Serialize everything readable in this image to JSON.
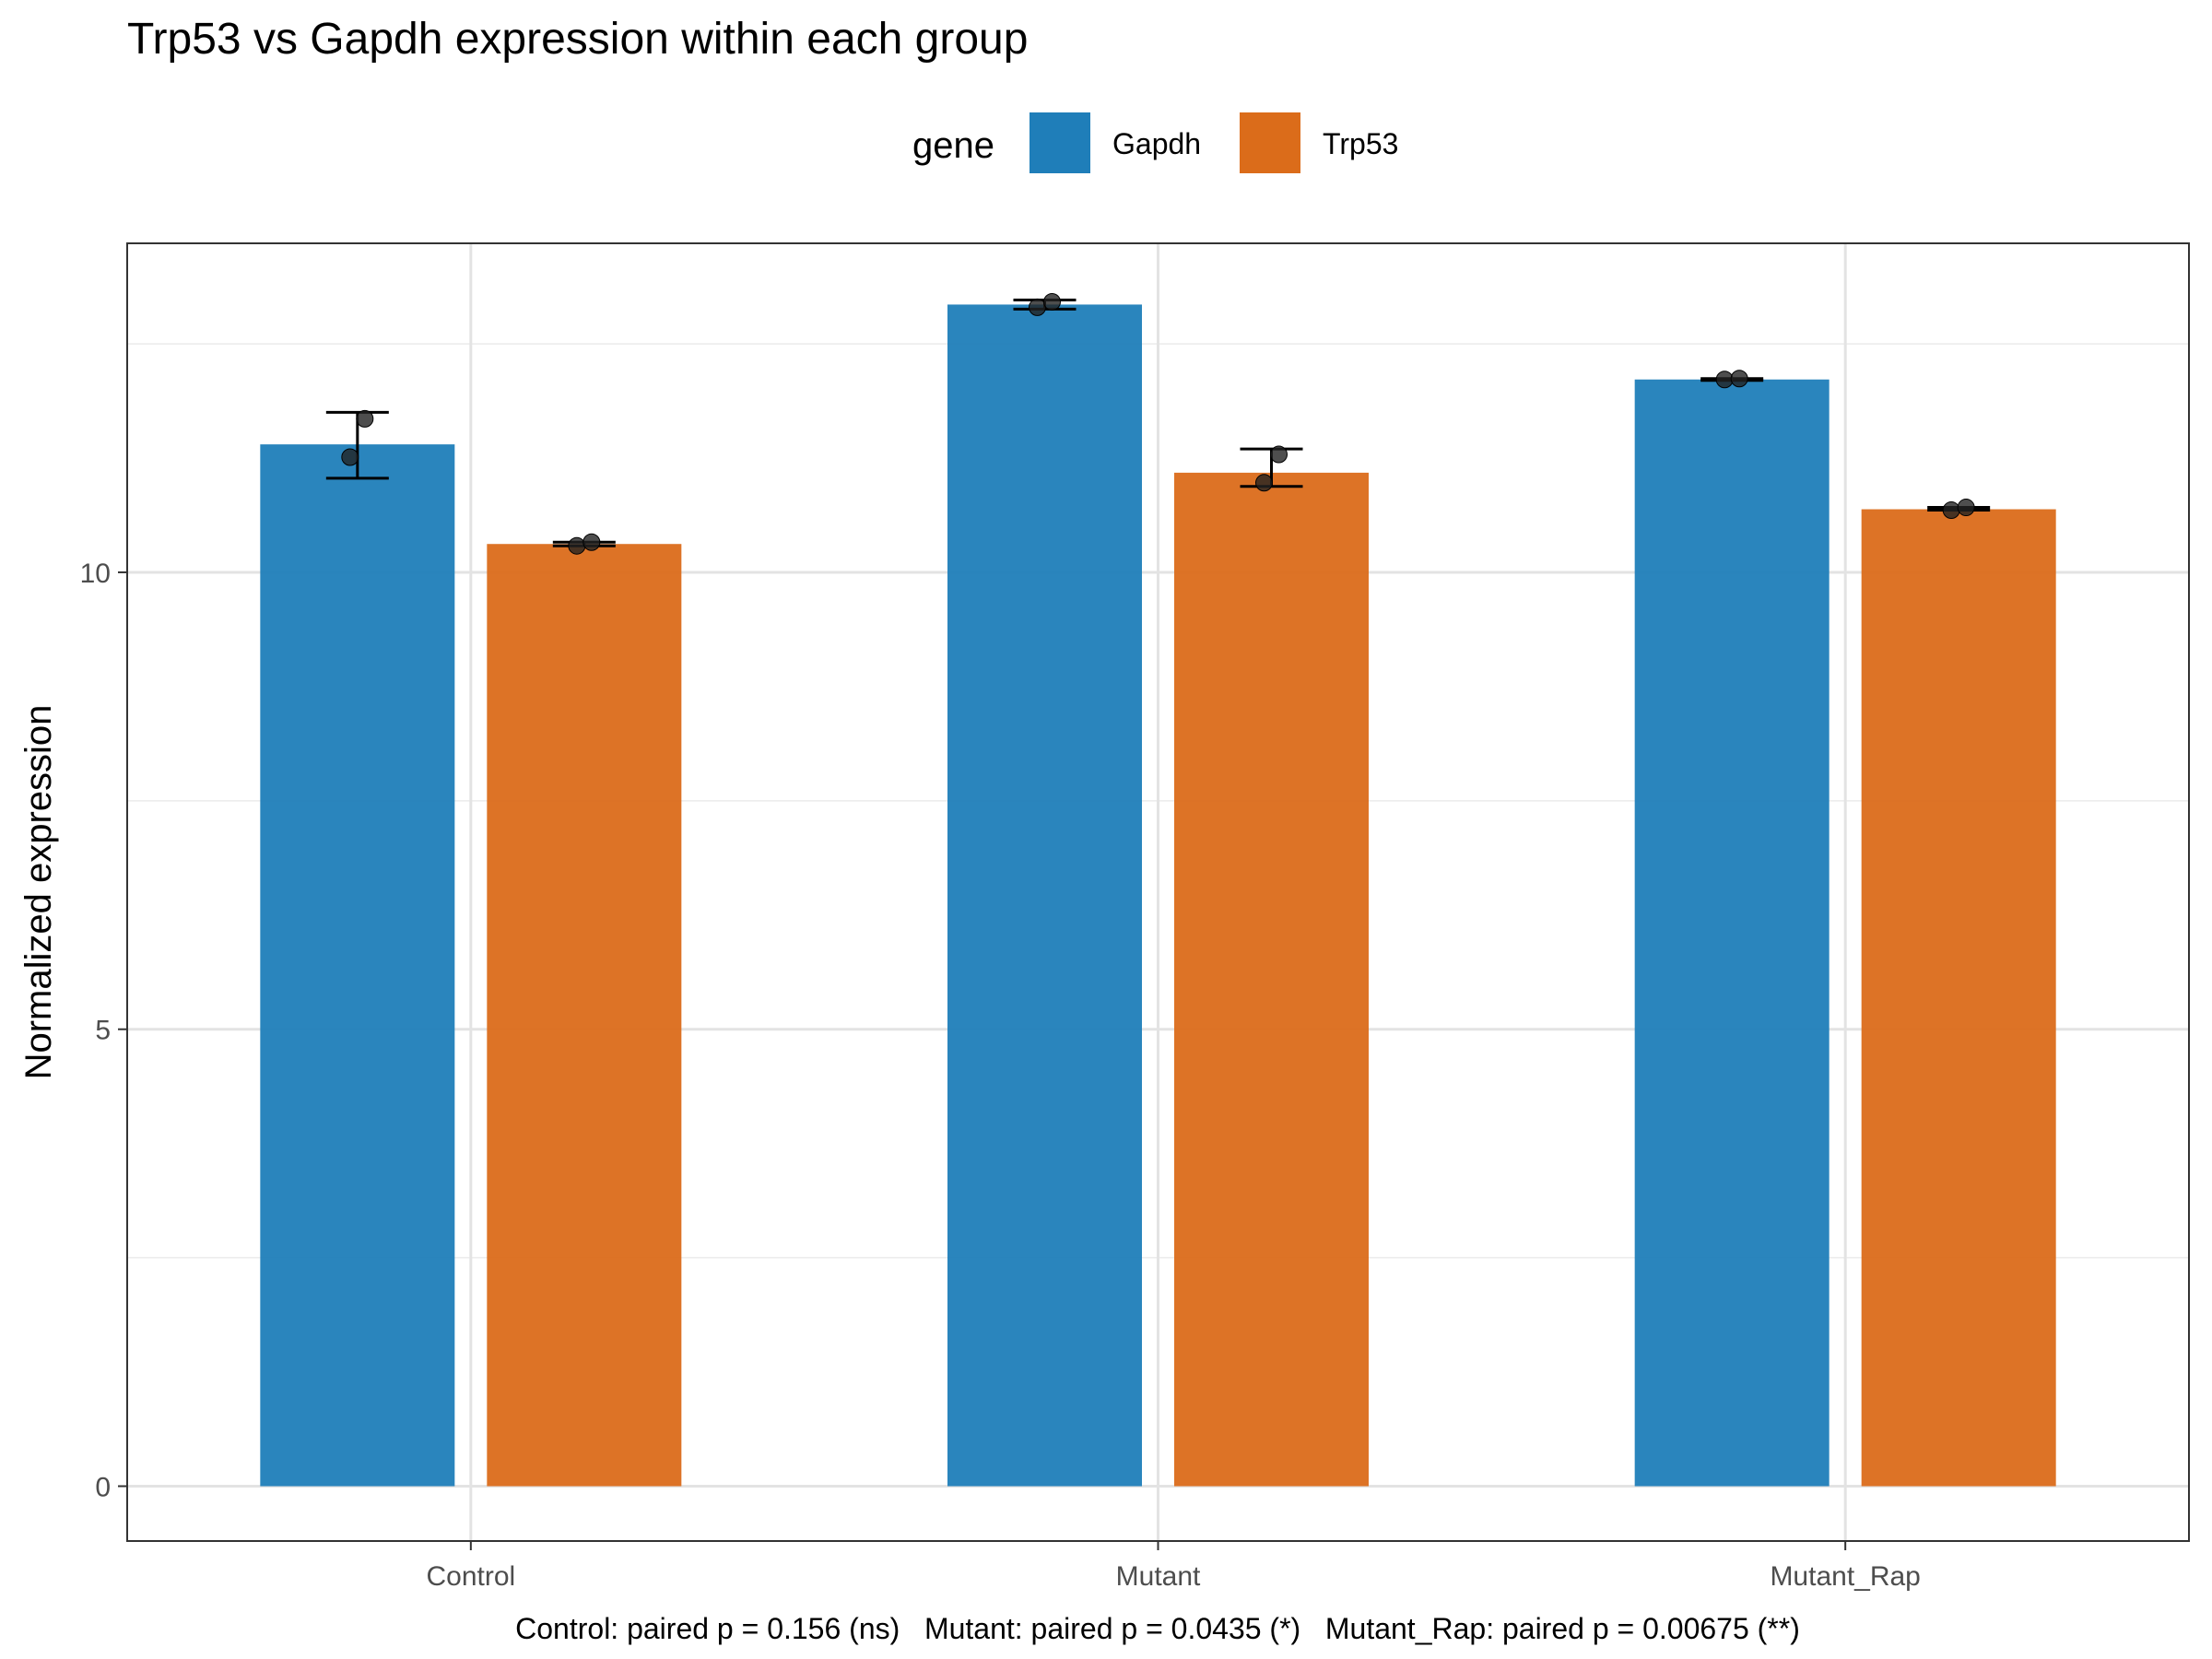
{
  "chart_data": {
    "type": "bar",
    "title": "Trp53 vs Gapdh expression within each group",
    "xlabel": "",
    "ylabel": "Normalized expression",
    "caption": "Control: paired p = 0.156 (ns)   Mutant: paired p = 0.0435 (*)   Mutant_Rap: paired p = 0.00675 (**)",
    "categories": [
      "Control",
      "Mutant",
      "Mutant_Rap"
    ],
    "ylim": [
      -0.6,
      13.6
    ],
    "yticks": [
      0,
      5,
      10
    ],
    "ytick_labels": [
      "0",
      "5",
      "10"
    ],
    "grid": true,
    "legend": {
      "title": "gene",
      "position": "top",
      "entries": [
        "Gapdh",
        "Trp53"
      ]
    },
    "series": [
      {
        "name": "Gapdh",
        "color": "#1f7eb9",
        "values": [
          11.4,
          12.93,
          12.11
        ],
        "error": [
          [
            11.03,
            11.75
          ],
          [
            12.88,
            12.98
          ],
          [
            12.1,
            12.12
          ]
        ],
        "points": [
          [
            11.26,
            11.68
          ],
          [
            12.9,
            12.96
          ],
          [
            12.11,
            12.12
          ]
        ]
      },
      {
        "name": "Trp53",
        "color": "#db6c1a",
        "values": [
          10.31,
          11.09,
          10.69
        ],
        "error": [
          [
            10.29,
            10.33
          ],
          [
            10.94,
            11.35
          ],
          [
            10.68,
            10.71
          ]
        ],
        "points": [
          [
            10.29,
            10.33
          ],
          [
            10.98,
            11.29
          ],
          [
            10.68,
            10.71
          ]
        ]
      }
    ]
  }
}
